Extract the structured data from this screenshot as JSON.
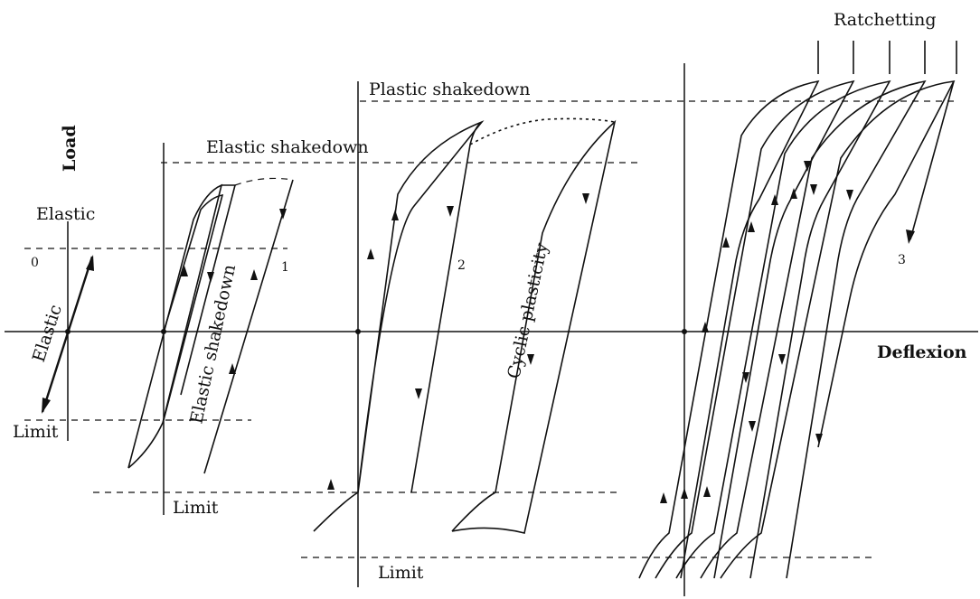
{
  "axes": {
    "load_label": "Load",
    "deflexion_label": "Deflexion"
  },
  "regimes": {
    "elastic": {
      "number": "0",
      "header": "Elastic",
      "curve_label": "Elastic",
      "limit_label": "Limit"
    },
    "elastic_shakedown": {
      "number": "1",
      "header": "Elastic shakedown",
      "curve_label": "Elastic shakedown",
      "limit_label": "Limit"
    },
    "cyclic_plasticity": {
      "number": "2",
      "header": "Plastic shakedown",
      "curve_label": "Cyclic plasticity",
      "limit_label": "Limit"
    },
    "ratchetting": {
      "number": "3",
      "header": "Ratchetting"
    }
  }
}
